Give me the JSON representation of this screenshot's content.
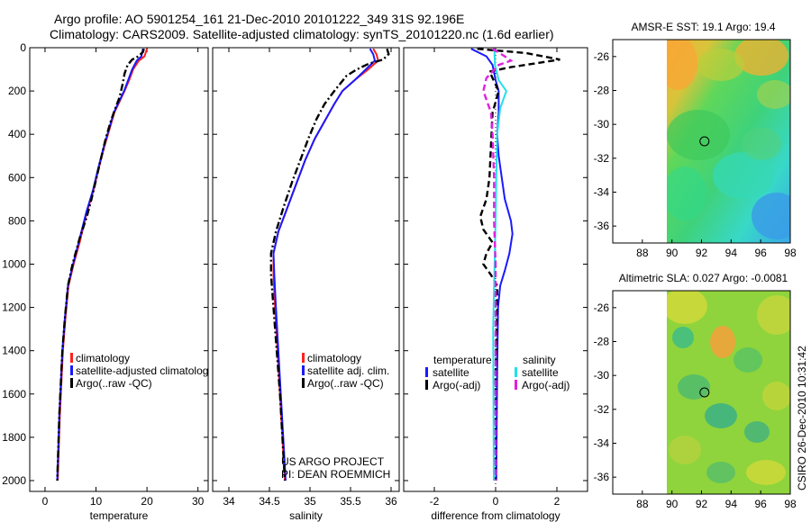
{
  "title_line1": "Argo profile: AO 5901254_161 21-Dec-2010 20101222_349 31S 92.196E",
  "title_line2": "Climatology: CARS2009. Satellite-adjusted climatology: synTS_20101220.nc (1.6d earlier)",
  "footer_project": "US ARGO PROJECT",
  "footer_pi": "PI: DEAN ROEMMICH",
  "side_credit": "CSIRO 26-Dec-2010 10:31:42",
  "colors": {
    "climatology": "#ff2020",
    "satellite": "#1a1aff",
    "argo": "#000000",
    "sat_salinity": "#22e0e8",
    "argo_salinity": "#e020e0"
  },
  "chart_data": [
    {
      "type": "line",
      "panel": "temperature",
      "xlabel": "temperature",
      "ylabel": "",
      "xlim": [
        -3,
        32
      ],
      "ylim": [
        2050,
        0
      ],
      "xticks": [
        0,
        10,
        20,
        30
      ],
      "yticks": [
        0,
        200,
        400,
        600,
        800,
        1000,
        1200,
        1400,
        1600,
        1800,
        2000
      ],
      "legend": [
        "climatology",
        "satellite-adjusted climatolog",
        "Argo(..raw -QC)"
      ],
      "series": [
        {
          "name": "climatology",
          "style": "solid",
          "color": "#ff2020",
          "points": [
            [
              20.0,
              5
            ],
            [
              19.8,
              20
            ],
            [
              19.5,
              40
            ],
            [
              18.4,
              60
            ],
            [
              17.3,
              100
            ],
            [
              16.5,
              150
            ],
            [
              15.6,
              200
            ],
            [
              14.6,
              250
            ],
            [
              13.6,
              300
            ],
            [
              12.6,
              380
            ],
            [
              11.6,
              460
            ],
            [
              10.5,
              560
            ],
            [
              9.5,
              660
            ],
            [
              8.2,
              760
            ],
            [
              6.8,
              900
            ],
            [
              5.6,
              1000
            ],
            [
              4.6,
              1100
            ],
            [
              4.0,
              1250
            ],
            [
              3.5,
              1400
            ],
            [
              3.2,
              1550
            ],
            [
              2.9,
              1700
            ],
            [
              2.7,
              1850
            ],
            [
              2.5,
              2000
            ]
          ]
        },
        {
          "name": "satellite-adjusted climatolog",
          "style": "solid",
          "color": "#1a1aff",
          "points": [
            [
              19.2,
              5
            ],
            [
              19.1,
              20
            ],
            [
              18.9,
              40
            ],
            [
              18.0,
              60
            ],
            [
              17.1,
              100
            ],
            [
              16.3,
              150
            ],
            [
              15.5,
              200
            ],
            [
              14.5,
              250
            ],
            [
              13.5,
              300
            ],
            [
              12.5,
              380
            ],
            [
              11.5,
              460
            ],
            [
              10.4,
              560
            ],
            [
              9.4,
              660
            ],
            [
              8.1,
              760
            ],
            [
              6.6,
              900
            ],
            [
              5.5,
              1000
            ],
            [
              4.5,
              1100
            ],
            [
              3.9,
              1250
            ],
            [
              3.4,
              1400
            ],
            [
              3.1,
              1550
            ],
            [
              2.8,
              1700
            ],
            [
              2.6,
              1850
            ],
            [
              2.4,
              2000
            ]
          ]
        },
        {
          "name": "Argo(..raw -QC)",
          "style": "dashdot",
          "color": "#000000",
          "points": [
            [
              19.4,
              5
            ],
            [
              19.2,
              20
            ],
            [
              18.3,
              40
            ],
            [
              17.1,
              55
            ],
            [
              16.2,
              80
            ],
            [
              15.6,
              120
            ],
            [
              15.2,
              170
            ],
            [
              14.6,
              230
            ],
            [
              13.8,
              280
            ],
            [
              12.9,
              340
            ],
            [
              11.9,
              420
            ],
            [
              10.9,
              520
            ],
            [
              9.9,
              620
            ],
            [
              9.1,
              700
            ],
            [
              8.2,
              780
            ],
            [
              6.8,
              880
            ],
            [
              5.4,
              1000
            ],
            [
              4.5,
              1100
            ],
            [
              3.9,
              1250
            ],
            [
              3.4,
              1400
            ],
            [
              3.1,
              1550
            ],
            [
              2.8,
              1700
            ],
            [
              2.6,
              1850
            ],
            [
              2.4,
              2000
            ]
          ]
        }
      ]
    },
    {
      "type": "line",
      "panel": "salinity",
      "xlabel": "salinity",
      "ylabel": "",
      "xlim": [
        33.8,
        36.1
      ],
      "ylim": [
        2050,
        0
      ],
      "xticks": [
        34,
        34.5,
        35,
        35.5,
        36
      ],
      "xticklabels": [
        "34",
        "34.5",
        "35",
        "35.5",
        "36"
      ],
      "legend": [
        "climatology",
        "satellite adj. clim.",
        "Argo(..raw -QC)"
      ],
      "series": [
        {
          "name": "climatology",
          "style": "solid",
          "color": "#ff2020",
          "points": [
            [
              35.78,
              5
            ],
            [
              35.82,
              30
            ],
            [
              35.84,
              60
            ],
            [
              35.72,
              100
            ],
            [
              35.55,
              150
            ],
            [
              35.4,
              200
            ],
            [
              35.3,
              260
            ],
            [
              35.18,
              340
            ],
            [
              35.06,
              420
            ],
            [
              34.94,
              520
            ],
            [
              34.84,
              620
            ],
            [
              34.73,
              730
            ],
            [
              34.61,
              850
            ],
            [
              34.55,
              950
            ],
            [
              34.55,
              1050
            ],
            [
              34.57,
              1200
            ],
            [
              34.6,
              1400
            ],
            [
              34.63,
              1600
            ],
            [
              34.66,
              1800
            ],
            [
              34.69,
              2000
            ]
          ]
        },
        {
          "name": "satellite adj. clim.",
          "style": "solid",
          "color": "#1a1aff",
          "points": [
            [
              35.74,
              5
            ],
            [
              35.78,
              30
            ],
            [
              35.8,
              60
            ],
            [
              35.69,
              100
            ],
            [
              35.55,
              150
            ],
            [
              35.4,
              200
            ],
            [
              35.3,
              260
            ],
            [
              35.18,
              340
            ],
            [
              35.06,
              420
            ],
            [
              34.94,
              520
            ],
            [
              34.84,
              620
            ],
            [
              34.73,
              730
            ],
            [
              34.61,
              850
            ],
            [
              34.55,
              950
            ],
            [
              34.56,
              1050
            ],
            [
              34.58,
              1200
            ],
            [
              34.61,
              1400
            ],
            [
              34.64,
              1600
            ],
            [
              34.67,
              1800
            ],
            [
              34.7,
              2000
            ]
          ]
        },
        {
          "name": "Argo(..raw -QC)",
          "style": "dashdot",
          "color": "#000000",
          "points": [
            [
              35.95,
              5
            ],
            [
              35.97,
              30
            ],
            [
              35.9,
              55
            ],
            [
              35.72,
              75
            ],
            [
              35.58,
              100
            ],
            [
              35.45,
              130
            ],
            [
              35.3,
              200
            ],
            [
              35.18,
              260
            ],
            [
              35.08,
              330
            ],
            [
              34.98,
              420
            ],
            [
              34.88,
              520
            ],
            [
              34.78,
              620
            ],
            [
              34.68,
              730
            ],
            [
              34.58,
              850
            ],
            [
              34.52,
              950
            ],
            [
              34.52,
              1050
            ],
            [
              34.55,
              1200
            ],
            [
              34.59,
              1400
            ],
            [
              34.63,
              1600
            ],
            [
              34.66,
              1800
            ],
            [
              34.69,
              2000
            ]
          ]
        }
      ]
    },
    {
      "type": "line",
      "panel": "difference",
      "xlabel": "difference from climatology",
      "ylabel": "",
      "xlim": [
        -3,
        3
      ],
      "ylim": [
        2050,
        0
      ],
      "xticks": [
        -2,
        0,
        2
      ],
      "legend_groups": [
        {
          "title": "temperature",
          "items": [
            "satellite",
            "Argo(-adj)"
          ]
        },
        {
          "title": "salinity",
          "items": [
            "satellite",
            "Argo(-adj)"
          ]
        }
      ],
      "series": [
        {
          "name": "temperature satellite",
          "style": "solid",
          "color": "#1a1aff",
          "points": [
            [
              -0.8,
              5
            ],
            [
              -0.3,
              40
            ],
            [
              -0.1,
              80
            ],
            [
              0.0,
              150
            ],
            [
              0.1,
              200
            ],
            [
              0.1,
              300
            ],
            [
              0.05,
              400
            ],
            [
              0.1,
              500
            ],
            [
              0.2,
              600
            ],
            [
              0.3,
              700
            ],
            [
              0.5,
              800
            ],
            [
              0.55,
              860
            ],
            [
              0.45,
              950
            ],
            [
              0.3,
              1030
            ],
            [
              0.15,
              1100
            ],
            [
              0.08,
              1200
            ],
            [
              0.05,
              1500
            ],
            [
              0.02,
              2000
            ]
          ]
        },
        {
          "name": "temperature Argo(-adj)",
          "style": "dashed",
          "color": "#000000",
          "points": [
            [
              -0.6,
              5
            ],
            [
              1.0,
              25
            ],
            [
              2.1,
              55
            ],
            [
              0.5,
              90
            ],
            [
              -0.2,
              110
            ],
            [
              0.1,
              200
            ],
            [
              -0.1,
              300
            ],
            [
              -0.15,
              450
            ],
            [
              -0.2,
              600
            ],
            [
              -0.3,
              700
            ],
            [
              -0.5,
              780
            ],
            [
              -0.4,
              840
            ],
            [
              -0.1,
              900
            ],
            [
              -0.3,
              950
            ],
            [
              -0.4,
              1000
            ],
            [
              -0.15,
              1050
            ],
            [
              0.05,
              1100
            ],
            [
              0.05,
              1200
            ],
            [
              0.0,
              1500
            ],
            [
              0.0,
              2000
            ]
          ]
        },
        {
          "name": "salinity satellite",
          "style": "solid",
          "color": "#22e0e8",
          "points": [
            [
              -0.04,
              5
            ],
            [
              -0.02,
              80
            ],
            [
              0.1,
              150
            ],
            [
              0.35,
              200
            ],
            [
              0.15,
              280
            ],
            [
              0.05,
              400
            ],
            [
              0.02,
              600
            ],
            [
              0.0,
              800
            ],
            [
              -0.05,
              1100
            ],
            [
              -0.08,
              1300
            ],
            [
              -0.07,
              1600
            ],
            [
              -0.06,
              2000
            ]
          ]
        },
        {
          "name": "salinity Argo(-adj)",
          "style": "dashed",
          "color": "#e020e0",
          "points": [
            [
              -0.1,
              5
            ],
            [
              0.3,
              40
            ],
            [
              0.5,
              60
            ],
            [
              0.1,
              80
            ],
            [
              -0.3,
              140
            ],
            [
              -0.4,
              200
            ],
            [
              -0.25,
              260
            ],
            [
              -0.15,
              300
            ],
            [
              -0.1,
              400
            ],
            [
              -0.05,
              600
            ],
            [
              -0.05,
              800
            ],
            [
              0.0,
              1000
            ],
            [
              0.0,
              1500
            ],
            [
              0.0,
              2000
            ]
          ]
        }
      ]
    },
    {
      "type": "heatmap",
      "panel": "amse_sst",
      "title": "AMSR-E SST: 19.1  Argo: 19.4",
      "xlim": [
        86,
        98
      ],
      "ylim": [
        -37,
        -25
      ],
      "xticks": [
        88,
        90,
        92,
        94,
        96,
        98
      ],
      "yticks": [
        -26,
        -28,
        -30,
        -32,
        -34,
        -36
      ],
      "data_xrange": [
        90,
        98
      ],
      "marker": {
        "lon": 92.2,
        "lat": -31
      }
    },
    {
      "type": "heatmap",
      "panel": "altimetric_sla",
      "title": "Altimetric SLA: 0.027  Argo: -0.0081",
      "xlim": [
        86,
        98
      ],
      "ylim": [
        -37,
        -25
      ],
      "xticks": [
        88,
        90,
        92,
        94,
        96,
        98
      ],
      "yticks": [
        -26,
        -28,
        -30,
        -32,
        -34,
        -36
      ],
      "data_xrange": [
        90,
        98
      ],
      "marker": {
        "lon": 92.2,
        "lat": -31
      }
    }
  ]
}
